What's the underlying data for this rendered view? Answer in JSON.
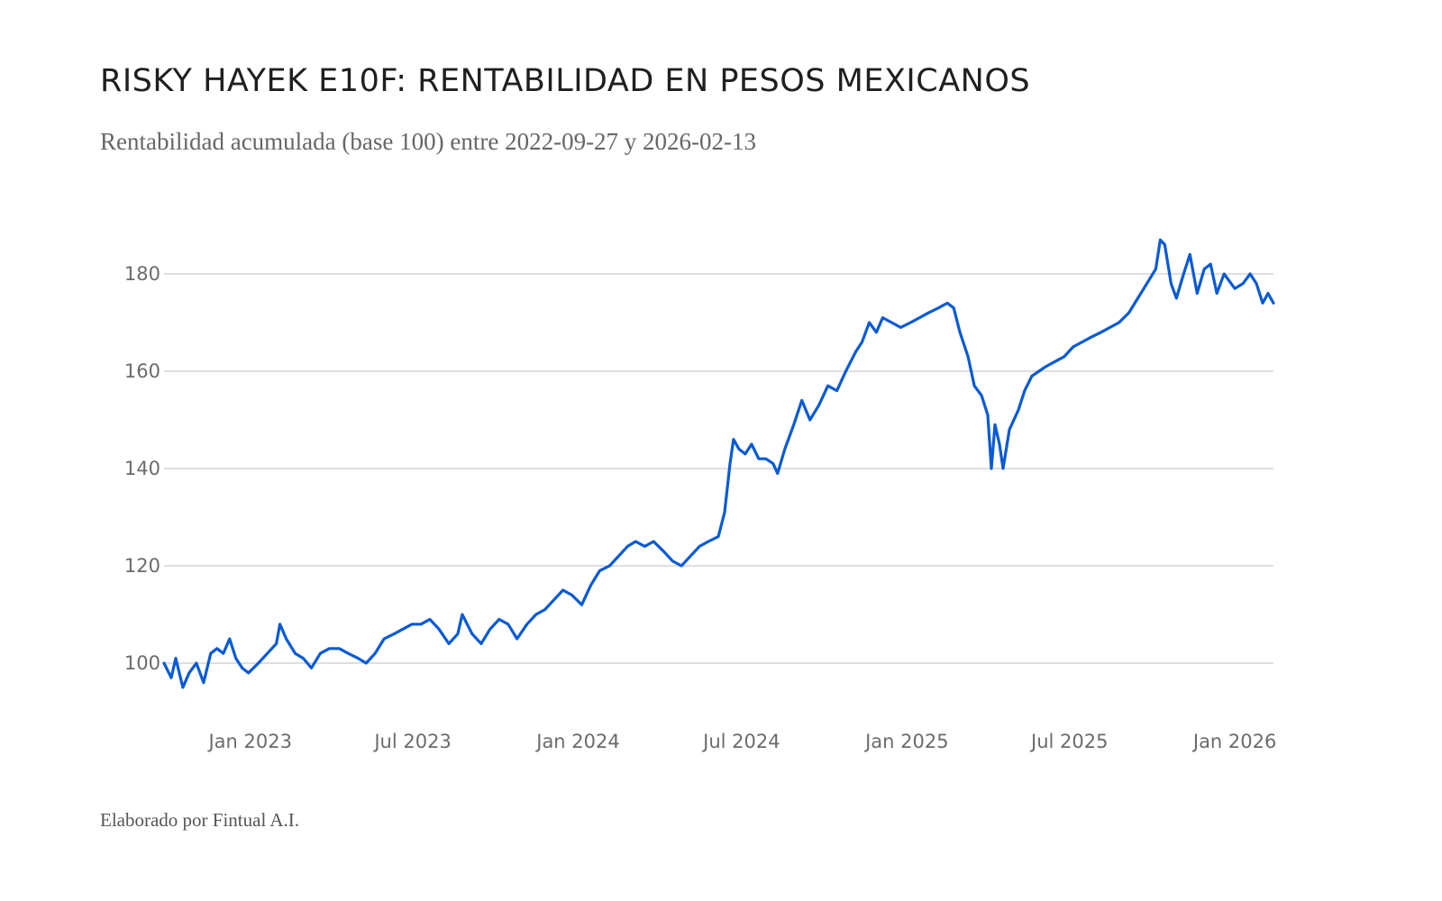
{
  "title": "RISKY HAYEK E10F: RENTABILIDAD EN PESOS MEXICANOS",
  "subtitle": "Rentabilidad acumulada (base 100) entre 2022-09-27 y 2026-02-13",
  "footer": "Elaborado por Fintual A.I.",
  "chart_data": {
    "type": "line",
    "title": "RISKY HAYEK E10F: RENTABILIDAD EN PESOS MEXICANOS",
    "subtitle": "Rentabilidad acumulada (base 100) entre 2022-09-27 y 2026-02-13",
    "xlabel": "",
    "ylabel": "",
    "x_range": [
      "2022-09-27",
      "2026-02-13"
    ],
    "ylim": [
      90,
      190
    ],
    "y_ticks": [
      100,
      120,
      140,
      160,
      180
    ],
    "x_ticks": [
      {
        "date": "2023-01-01",
        "label": "Jan 2023"
      },
      {
        "date": "2023-07-01",
        "label": "Jul 2023"
      },
      {
        "date": "2024-01-01",
        "label": "Jan 2024"
      },
      {
        "date": "2024-07-01",
        "label": "Jul 2024"
      },
      {
        "date": "2025-01-01",
        "label": "Jan 2025"
      },
      {
        "date": "2025-07-01",
        "label": "Jul 2025"
      },
      {
        "date": "2026-01-01",
        "label": "Jan 2026"
      }
    ],
    "grid": true,
    "line_color": "#0a5ad4",
    "grid_color": "#cccccc",
    "series": [
      {
        "name": "Risky Hayek E10F",
        "points": [
          [
            "2022-09-27",
            100
          ],
          [
            "2022-10-05",
            97
          ],
          [
            "2022-10-10",
            101
          ],
          [
            "2022-10-18",
            95
          ],
          [
            "2022-10-25",
            98
          ],
          [
            "2022-11-02",
            100
          ],
          [
            "2022-11-10",
            96
          ],
          [
            "2022-11-18",
            102
          ],
          [
            "2022-11-25",
            103
          ],
          [
            "2022-12-02",
            102
          ],
          [
            "2022-12-09",
            105
          ],
          [
            "2022-12-16",
            101
          ],
          [
            "2022-12-23",
            99
          ],
          [
            "2022-12-30",
            98
          ],
          [
            "2023-01-10",
            100
          ],
          [
            "2023-01-20",
            102
          ],
          [
            "2023-01-30",
            104
          ],
          [
            "2023-02-03",
            108
          ],
          [
            "2023-02-10",
            105
          ],
          [
            "2023-02-20",
            102
          ],
          [
            "2023-03-01",
            101
          ],
          [
            "2023-03-10",
            99
          ],
          [
            "2023-03-20",
            102
          ],
          [
            "2023-03-30",
            103
          ],
          [
            "2023-04-10",
            103
          ],
          [
            "2023-04-20",
            102
          ],
          [
            "2023-05-01",
            101
          ],
          [
            "2023-05-10",
            100
          ],
          [
            "2023-05-20",
            102
          ],
          [
            "2023-05-30",
            105
          ],
          [
            "2023-06-10",
            106
          ],
          [
            "2023-06-20",
            107
          ],
          [
            "2023-06-30",
            108
          ],
          [
            "2023-07-10",
            108
          ],
          [
            "2023-07-20",
            109
          ],
          [
            "2023-07-30",
            107
          ],
          [
            "2023-08-10",
            104
          ],
          [
            "2023-08-20",
            106
          ],
          [
            "2023-08-25",
            110
          ],
          [
            "2023-09-05",
            106
          ],
          [
            "2023-09-15",
            104
          ],
          [
            "2023-09-25",
            107
          ],
          [
            "2023-10-05",
            109
          ],
          [
            "2023-10-15",
            108
          ],
          [
            "2023-10-25",
            105
          ],
          [
            "2023-11-05",
            108
          ],
          [
            "2023-11-15",
            110
          ],
          [
            "2023-11-25",
            111
          ],
          [
            "2023-12-05",
            113
          ],
          [
            "2023-12-15",
            115
          ],
          [
            "2023-12-25",
            114
          ],
          [
            "2024-01-05",
            112
          ],
          [
            "2024-01-15",
            116
          ],
          [
            "2024-01-25",
            119
          ],
          [
            "2024-02-05",
            120
          ],
          [
            "2024-02-15",
            122
          ],
          [
            "2024-02-25",
            124
          ],
          [
            "2024-03-05",
            125
          ],
          [
            "2024-03-15",
            124
          ],
          [
            "2024-03-25",
            125
          ],
          [
            "2024-04-05",
            123
          ],
          [
            "2024-04-15",
            121
          ],
          [
            "2024-04-25",
            120
          ],
          [
            "2024-05-05",
            122
          ],
          [
            "2024-05-15",
            124
          ],
          [
            "2024-05-25",
            125
          ],
          [
            "2024-06-05",
            126
          ],
          [
            "2024-06-12",
            131
          ],
          [
            "2024-06-18",
            141
          ],
          [
            "2024-06-22",
            146
          ],
          [
            "2024-06-28",
            144
          ],
          [
            "2024-07-05",
            143
          ],
          [
            "2024-07-12",
            145
          ],
          [
            "2024-07-20",
            142
          ],
          [
            "2024-07-28",
            142
          ],
          [
            "2024-08-05",
            141
          ],
          [
            "2024-08-10",
            139
          ],
          [
            "2024-08-18",
            144
          ],
          [
            "2024-08-28",
            149
          ],
          [
            "2024-09-06",
            154
          ],
          [
            "2024-09-15",
            150
          ],
          [
            "2024-09-25",
            153
          ],
          [
            "2024-10-05",
            157
          ],
          [
            "2024-10-15",
            156
          ],
          [
            "2024-10-25",
            160
          ],
          [
            "2024-11-05",
            164
          ],
          [
            "2024-11-12",
            166
          ],
          [
            "2024-11-20",
            170
          ],
          [
            "2024-11-28",
            168
          ],
          [
            "2024-12-05",
            171
          ],
          [
            "2024-12-15",
            170
          ],
          [
            "2024-12-25",
            169
          ],
          [
            "2025-01-05",
            170
          ],
          [
            "2025-01-15",
            171
          ],
          [
            "2025-01-25",
            172
          ],
          [
            "2025-02-05",
            173
          ],
          [
            "2025-02-15",
            174
          ],
          [
            "2025-02-22",
            173
          ],
          [
            "2025-03-01",
            168
          ],
          [
            "2025-03-10",
            163
          ],
          [
            "2025-03-17",
            157
          ],
          [
            "2025-03-25",
            155
          ],
          [
            "2025-04-01",
            151
          ],
          [
            "2025-04-05",
            140
          ],
          [
            "2025-04-09",
            149
          ],
          [
            "2025-04-14",
            145
          ],
          [
            "2025-04-18",
            140
          ],
          [
            "2025-04-25",
            148
          ],
          [
            "2025-05-05",
            152
          ],
          [
            "2025-05-12",
            156
          ],
          [
            "2025-05-20",
            159
          ],
          [
            "2025-05-28",
            160
          ],
          [
            "2025-06-05",
            161
          ],
          [
            "2025-06-15",
            162
          ],
          [
            "2025-06-25",
            163
          ],
          [
            "2025-07-05",
            165
          ],
          [
            "2025-07-15",
            166
          ],
          [
            "2025-07-25",
            167
          ],
          [
            "2025-08-05",
            168
          ],
          [
            "2025-08-15",
            169
          ],
          [
            "2025-08-25",
            170
          ],
          [
            "2025-09-05",
            172
          ],
          [
            "2025-09-15",
            175
          ],
          [
            "2025-09-25",
            178
          ],
          [
            "2025-10-05",
            181
          ],
          [
            "2025-10-10",
            187
          ],
          [
            "2025-10-15",
            186
          ],
          [
            "2025-10-22",
            178
          ],
          [
            "2025-10-28",
            175
          ],
          [
            "2025-11-05",
            180
          ],
          [
            "2025-11-12",
            184
          ],
          [
            "2025-11-20",
            176
          ],
          [
            "2025-11-28",
            181
          ],
          [
            "2025-12-05",
            182
          ],
          [
            "2025-12-12",
            176
          ],
          [
            "2025-12-20",
            180
          ],
          [
            "2026-01-01",
            177
          ],
          [
            "2026-01-10",
            178
          ],
          [
            "2026-01-18",
            180
          ],
          [
            "2026-01-25",
            178
          ],
          [
            "2026-02-01",
            174
          ],
          [
            "2026-02-07",
            176
          ],
          [
            "2026-02-13",
            174
          ]
        ]
      }
    ]
  }
}
